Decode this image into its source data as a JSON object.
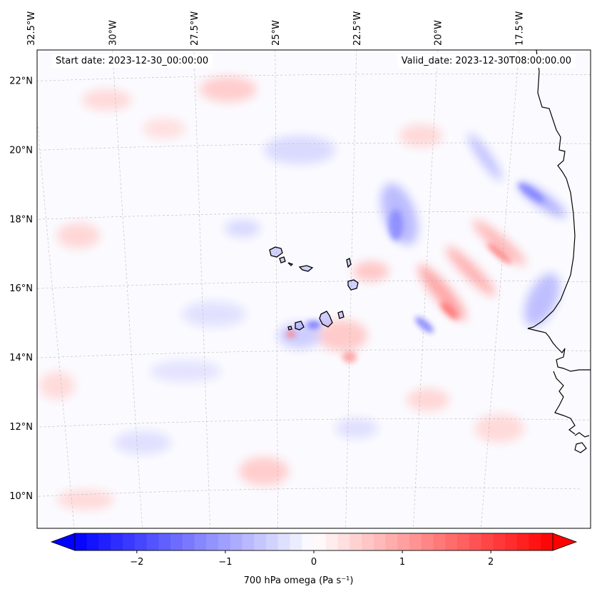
{
  "header": {
    "start_label": "Start date: 2023-12-30_00:00:00",
    "valid_label": "Valid_date: 2023-12-30T08:00:00.00"
  },
  "map": {
    "projection": "lambert-conformal",
    "extent": {
      "lon_min": -33.0,
      "lon_max": -15.5,
      "lat_min": 9.0,
      "lat_max": 22.8
    },
    "lon_ticks": [
      {
        "value": -32.5,
        "label": "32.5°W"
      },
      {
        "value": -30.0,
        "label": "30°W"
      },
      {
        "value": -27.5,
        "label": "27.5°W"
      },
      {
        "value": -25.0,
        "label": "25°W"
      },
      {
        "value": -22.5,
        "label": "22.5°W"
      },
      {
        "value": -20.0,
        "label": "20°W"
      },
      {
        "value": -17.5,
        "label": "17.5°W"
      }
    ],
    "lat_ticks": [
      {
        "value": 22,
        "label": "22°N"
      },
      {
        "value": 20,
        "label": "20°N"
      },
      {
        "value": 18,
        "label": "18°N"
      },
      {
        "value": 16,
        "label": "16°N"
      },
      {
        "value": 14,
        "label": "14°N"
      },
      {
        "value": 12,
        "label": "12°N"
      },
      {
        "value": 10,
        "label": "10°N"
      }
    ],
    "gridlines": true,
    "field": "700 hPa vertical velocity (omega)",
    "features": [
      "west-african-coastline",
      "cape-verde-islands"
    ]
  },
  "colorbar": {
    "label": "700 hPa omega (Pa s⁻¹)",
    "vmin": -2.7,
    "vmax": 2.7,
    "colormap": "bwr",
    "colors": {
      "negative": "#0000ff",
      "zero": "#ffffff",
      "positive": "#ff0000"
    },
    "extend": "both",
    "ticks": [
      {
        "value": -2,
        "label": "−2"
      },
      {
        "value": -1,
        "label": "−1"
      },
      {
        "value": 0,
        "label": "0"
      },
      {
        "value": 1,
        "label": "1"
      },
      {
        "value": 2,
        "label": "2"
      }
    ]
  }
}
